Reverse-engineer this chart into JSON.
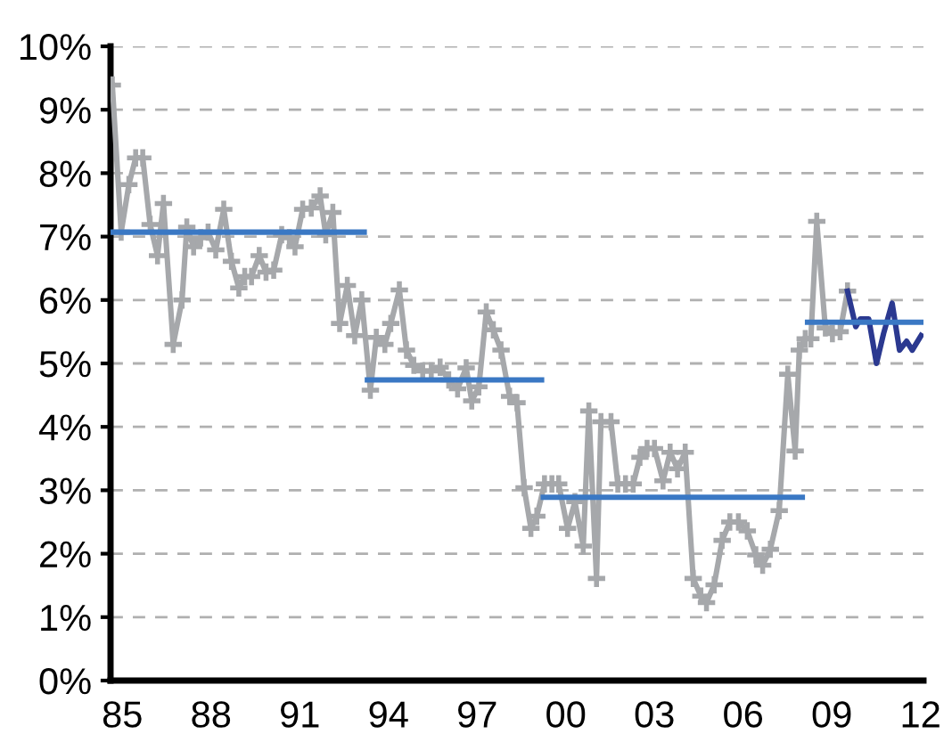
{
  "chart_data": {
    "type": "line",
    "xlim": [
      1984.6,
      2012.1
    ],
    "xticks": [
      {
        "value": 1985,
        "label": "85"
      },
      {
        "value": 1988,
        "label": "88"
      },
      {
        "value": 1991,
        "label": "91"
      },
      {
        "value": 1994,
        "label": "94"
      },
      {
        "value": 1997,
        "label": "97"
      },
      {
        "value": 2000,
        "label": "00"
      },
      {
        "value": 2003,
        "label": "03"
      },
      {
        "value": 2006,
        "label": "06"
      },
      {
        "value": 2009,
        "label": "09"
      },
      {
        "value": 2012,
        "label": "12"
      }
    ],
    "ylim": [
      0,
      10
    ],
    "yticks": [
      {
        "value": 0,
        "label": "0%"
      },
      {
        "value": 1,
        "label": "1%"
      },
      {
        "value": 2,
        "label": "2%"
      },
      {
        "value": 3,
        "label": "3%"
      },
      {
        "value": 4,
        "label": "4%"
      },
      {
        "value": 5,
        "label": "5%"
      },
      {
        "value": 6,
        "label": "6%"
      },
      {
        "value": 7,
        "label": "7%"
      },
      {
        "value": 8,
        "label": "8%"
      },
      {
        "value": 9,
        "label": "9%"
      },
      {
        "value": 10,
        "label": "10%"
      }
    ],
    "grid": "y",
    "legend": false,
    "series": [
      {
        "color": "#a6a8ab",
        "marker": "cross",
        "x": [
          1984.66,
          1984.96,
          1985.22,
          1985.45,
          1985.69,
          1985.94,
          1986.19,
          1986.39,
          1986.72,
          1987.02,
          1987.18,
          1987.41,
          1987.65,
          1987.9,
          1988.16,
          1988.43,
          1988.69,
          1988.94,
          1989.14,
          1989.37,
          1989.63,
          1989.86,
          1990.12,
          1990.39,
          1990.65,
          1990.84,
          1991.1,
          1991.39,
          1991.69,
          1991.88,
          1992.12,
          1992.35,
          1992.61,
          1992.86,
          1993.1,
          1993.39,
          1993.59,
          1993.88,
          1994.08,
          1994.37,
          1994.61,
          1994.86,
          1995.16,
          1995.45,
          1995.75,
          1996.04,
          1996.34,
          1996.63,
          1996.82,
          1997.06,
          1997.31,
          1997.55,
          1997.81,
          1998.1,
          1998.35,
          1998.59,
          1998.82,
          1999.02,
          1999.28,
          1999.53,
          1999.76,
          2000.06,
          2000.31,
          2000.59,
          2000.78,
          2001.04,
          2001.19,
          2001.53,
          2001.76,
          2002.02,
          2002.28,
          2002.51,
          2002.75,
          2003.0,
          2003.29,
          2003.53,
          2003.78,
          2004.04,
          2004.31,
          2004.57,
          2004.76,
          2005.02,
          2005.29,
          2005.55,
          2005.84,
          2006.14,
          2006.43,
          2006.66,
          2006.92,
          2007.22,
          2007.51,
          2007.76,
          2007.9,
          2008.1,
          2008.29,
          2008.49,
          2008.78,
          2009.02,
          2009.28,
          2009.53
        ],
        "values": [
          9.39,
          7.07,
          7.82,
          8.24,
          8.24,
          7.19,
          6.7,
          7.52,
          5.3,
          6.0,
          7.15,
          6.84,
          6.98,
          7.07,
          6.79,
          7.43,
          6.61,
          6.19,
          6.37,
          6.37,
          6.7,
          6.44,
          6.47,
          7.03,
          6.98,
          6.84,
          7.43,
          7.45,
          7.64,
          7.03,
          7.38,
          5.63,
          6.23,
          5.44,
          6.0,
          4.58,
          5.41,
          5.3,
          5.63,
          6.16,
          5.21,
          4.97,
          4.88,
          4.88,
          4.94,
          4.74,
          4.6,
          4.93,
          4.41,
          4.63,
          5.81,
          5.53,
          5.21,
          4.48,
          4.38,
          3.04,
          2.4,
          2.59,
          3.1,
          3.1,
          3.1,
          2.4,
          2.82,
          2.12,
          4.25,
          1.61,
          4.08,
          4.08,
          3.1,
          3.1,
          3.1,
          3.52,
          3.66,
          3.66,
          3.15,
          3.6,
          3.34,
          3.6,
          1.61,
          1.33,
          1.23,
          1.51,
          2.21,
          2.5,
          2.5,
          2.36,
          1.98,
          1.82,
          2.07,
          2.68,
          4.83,
          3.62,
          5.21,
          5.39,
          5.39,
          7.24,
          5.56,
          5.47,
          5.5,
          6.14
        ]
      },
      {
        "color": "#2b3990",
        "marker": "none",
        "x": [
          2009.53,
          2009.81,
          2009.96,
          2010.25,
          2010.51,
          2010.75,
          2011.04,
          2011.29,
          2011.53,
          2011.72,
          2012.02
        ],
        "values": [
          6.14,
          5.58,
          5.7,
          5.7,
          5.0,
          5.47,
          5.95,
          5.21,
          5.35,
          5.21,
          5.44
        ]
      },
      {
        "color": "#3a78c4",
        "marker": "none",
        "x": [
          1984.66,
          1993.18
        ],
        "values": [
          7.07,
          7.07
        ]
      },
      {
        "color": "#3a78c4",
        "marker": "none",
        "x": [
          1993.29,
          1999.18
        ],
        "values": [
          4.74,
          4.74
        ]
      },
      {
        "color": "#3a78c4",
        "marker": "none",
        "x": [
          1999.24,
          2008.0
        ],
        "values": [
          2.89,
          2.89
        ]
      },
      {
        "color": "#3a78c4",
        "marker": "none",
        "x": [
          2008.18,
          2012.1
        ],
        "values": [
          5.65,
          5.65
        ]
      }
    ]
  }
}
